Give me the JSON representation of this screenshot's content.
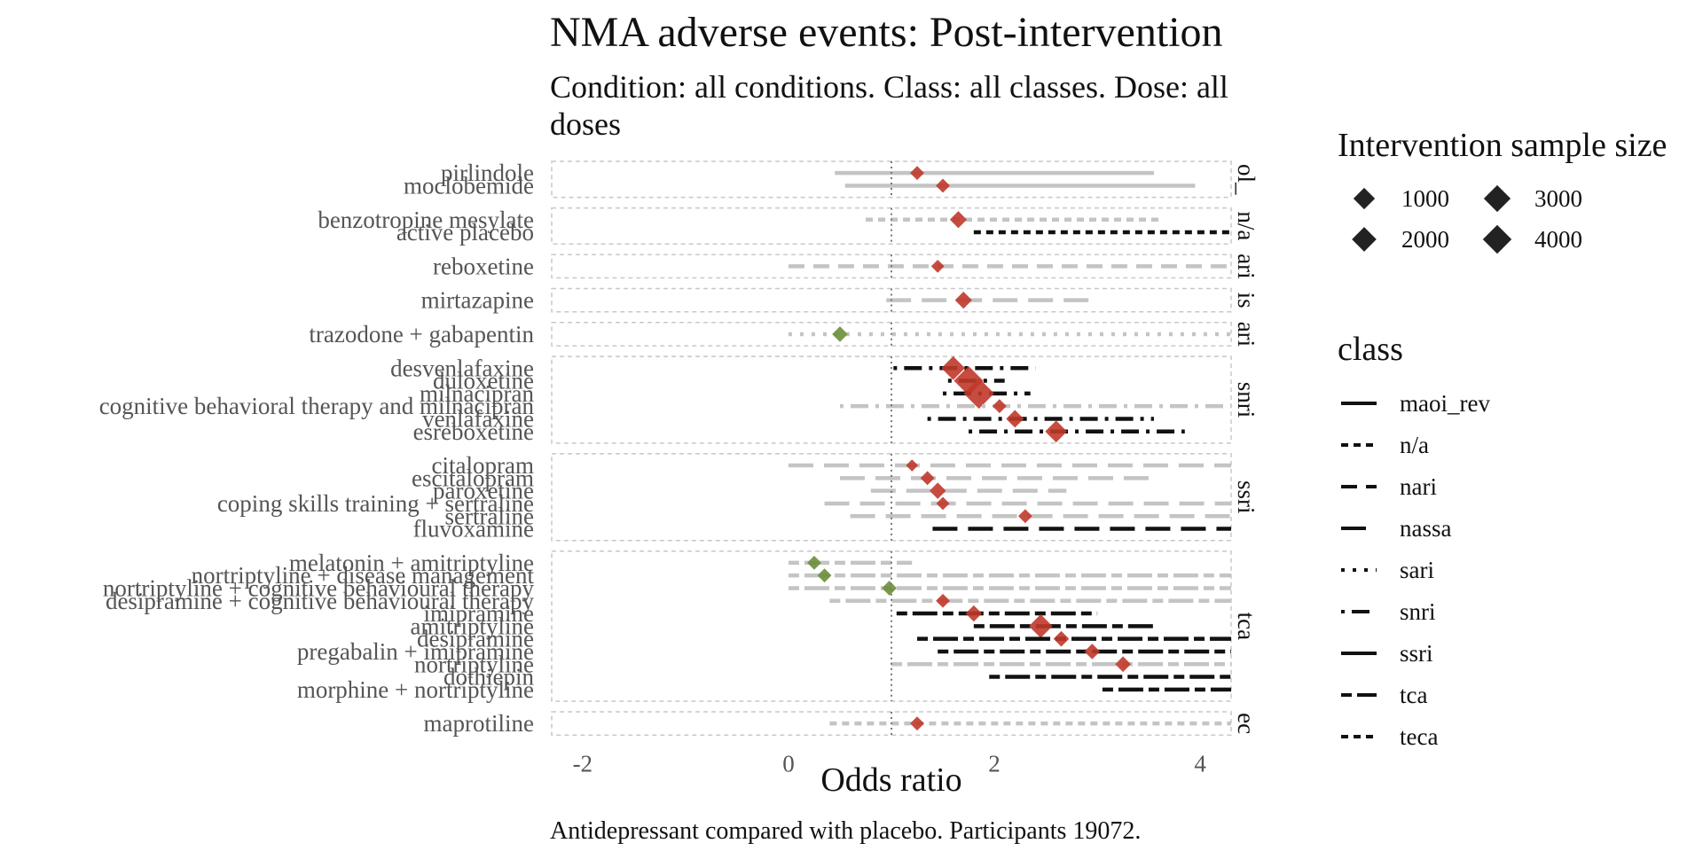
{
  "chart_data": {
    "type": "forest",
    "title": "NMA adverse events: Post-intervention",
    "subtitle_line1": "Condition: all conditions. Class: all classes. Dose: all",
    "subtitle_line2": "doses",
    "xlabel": "Odds ratio",
    "caption": "Antidepressant compared with placebo. Participants 19072.",
    "xlim": [
      -2.3,
      4.3
    ],
    "x_ticks": [
      -2,
      0,
      2,
      4
    ],
    "x_tick_labels": [
      "-2",
      "0",
      "2",
      "4"
    ],
    "reference_line": 1,
    "legend_size": {
      "title": "Intervention sample size",
      "entries": [
        {
          "label": "1000",
          "value": 1000
        },
        {
          "label": "3000",
          "value": 3000
        },
        {
          "label": "2000",
          "value": 2000
        },
        {
          "label": "4000",
          "value": 4000
        }
      ]
    },
    "legend_class": {
      "title": "class",
      "entries": [
        {
          "label": "maoi_rev",
          "dash": "solid"
        },
        {
          "label": "n/a",
          "dash": "dotted-dash"
        },
        {
          "label": "nari",
          "dash": "dashed"
        },
        {
          "label": "nassa",
          "dash": "longdash"
        },
        {
          "label": "sari",
          "dash": "dotted"
        },
        {
          "label": "snri",
          "dash": "dotdash"
        },
        {
          "label": "ssri",
          "dash": "solid"
        },
        {
          "label": "tca",
          "dash": "twodash"
        },
        {
          "label": "teca",
          "dash": "dotted-dash"
        }
      ]
    },
    "colors": {
      "point_harm": "#c0392b",
      "point_benefit": "#6b8e3a",
      "ci_sig": "#111111",
      "ci_nonsig": "#c4c4c4",
      "ref_line": "#777777"
    },
    "panels": [
      {
        "strip": "ol_",
        "rows": [
          {
            "label": "pirlindole",
            "or": 1.25,
            "lo": 0.45,
            "hi": 3.55,
            "size": 500,
            "sig": false,
            "dash": "solid"
          },
          {
            "label": "moclobemide",
            "or": 1.5,
            "lo": 0.55,
            "hi": 3.95,
            "size": 500,
            "sig": false,
            "dash": "solid"
          }
        ]
      },
      {
        "strip": "n/a",
        "rows": [
          {
            "label": "benzotropine mesylate",
            "or": 1.65,
            "lo": 0.75,
            "hi": 3.6,
            "size": 900,
            "sig": false,
            "dash": "dotted-dash"
          },
          {
            "label": "active placebo",
            "or": 1.8,
            "lo": 1.8,
            "hi": 4.3,
            "size": 0,
            "sig": true,
            "dash": "dotted-dash"
          }
        ]
      },
      {
        "strip": "ari",
        "rows": [
          {
            "label": "reboxetine",
            "or": 1.45,
            "lo": 0.0,
            "hi": 4.3,
            "size": 400,
            "sig": false,
            "dash": "dashed"
          }
        ]
      },
      {
        "strip": "is",
        "rows": [
          {
            "label": "mirtazapine",
            "or": 1.7,
            "lo": 0.95,
            "hi": 3.0,
            "size": 900,
            "sig": false,
            "dash": "longdash"
          }
        ]
      },
      {
        "strip": "ari",
        "rows": [
          {
            "label": "trazodone + gabapentin",
            "or": 0.5,
            "lo": 0.0,
            "hi": 4.3,
            "size": 700,
            "sig": false,
            "dash": "dotted",
            "benefit": true
          }
        ]
      },
      {
        "strip": "snri",
        "rows": [
          {
            "label": "desvenlafaxine",
            "or": 1.6,
            "lo": 1.02,
            "hi": 2.4,
            "size": 2200,
            "sig": true,
            "dash": "dotdash"
          },
          {
            "label": "duloxetine",
            "or": 1.75,
            "lo": 1.55,
            "hi": 2.1,
            "size": 3800,
            "sig": true,
            "dash": "dotdash"
          },
          {
            "label": "milnacipran",
            "or": 1.85,
            "lo": 1.5,
            "hi": 2.35,
            "size": 4200,
            "sig": true,
            "dash": "dotdash"
          },
          {
            "label": "cognitive behavioral therapy and milnacipran",
            "or": 2.05,
            "lo": 0.5,
            "hi": 4.3,
            "size": 500,
            "sig": false,
            "dash": "dotdash"
          },
          {
            "label": "venlafaxine",
            "or": 2.2,
            "lo": 1.35,
            "hi": 3.55,
            "size": 1000,
            "sig": true,
            "dash": "dotdash"
          },
          {
            "label": "esreboxetine",
            "or": 2.6,
            "lo": 1.75,
            "hi": 3.85,
            "size": 1800,
            "sig": true,
            "dash": "dotdash"
          }
        ]
      },
      {
        "strip": "ssri",
        "rows": [
          {
            "label": "citalopram",
            "or": 1.2,
            "lo": 0.0,
            "hi": 4.3,
            "size": 300,
            "sig": false,
            "dash": "longdash"
          },
          {
            "label": "escitalopram",
            "or": 1.35,
            "lo": 0.5,
            "hi": 3.55,
            "size": 500,
            "sig": false,
            "dash": "longdash"
          },
          {
            "label": "paroxetine",
            "or": 1.45,
            "lo": 0.8,
            "hi": 2.7,
            "size": 800,
            "sig": false,
            "dash": "longdash"
          },
          {
            "label": "coping skills training + sertraline",
            "or": 1.5,
            "lo": 0.35,
            "hi": 4.3,
            "size": 400,
            "sig": false,
            "dash": "longdash"
          },
          {
            "label": "sertraline",
            "or": 2.3,
            "lo": 0.6,
            "hi": 4.3,
            "size": 500,
            "sig": false,
            "dash": "longdash"
          },
          {
            "label": "fluvoxamine",
            "or": 2.3,
            "lo": 1.4,
            "hi": 4.3,
            "size": 0,
            "sig": true,
            "dash": "longdash"
          }
        ]
      },
      {
        "strip": "tca",
        "rows": [
          {
            "label": "melatonin + amitriptyline",
            "or": 0.25,
            "lo": 0.0,
            "hi": 1.2,
            "size": 500,
            "sig": false,
            "dash": "twodash",
            "benefit": true
          },
          {
            "label": "nortriptyline + disease management",
            "or": 0.35,
            "lo": 0.0,
            "hi": 4.3,
            "size": 500,
            "sig": false,
            "dash": "twodash",
            "benefit": true
          },
          {
            "label": "nortriptyline + cognitive behavioural therapy",
            "or": 0.98,
            "lo": 0.0,
            "hi": 4.3,
            "size": 600,
            "sig": false,
            "dash": "twodash",
            "benefit": true
          },
          {
            "label": "desipramine + cognitive behavioural therapy",
            "or": 1.5,
            "lo": 0.4,
            "hi": 4.3,
            "size": 500,
            "sig": false,
            "dash": "twodash"
          },
          {
            "label": "imipramine",
            "or": 1.8,
            "lo": 1.05,
            "hi": 3.0,
            "size": 800,
            "sig": true,
            "dash": "twodash"
          },
          {
            "label": "amitriptyline",
            "or": 2.45,
            "lo": 1.8,
            "hi": 3.55,
            "size": 2200,
            "sig": true,
            "dash": "twodash"
          },
          {
            "label": "desipramine",
            "or": 2.65,
            "lo": 1.25,
            "hi": 4.3,
            "size": 700,
            "sig": true,
            "dash": "twodash"
          },
          {
            "label": "pregabalin + imipramine",
            "or": 2.95,
            "lo": 1.45,
            "hi": 4.3,
            "size": 700,
            "sig": true,
            "dash": "twodash"
          },
          {
            "label": "nortriptyline",
            "or": 3.25,
            "lo": 1.0,
            "hi": 4.3,
            "size": 700,
            "sig": false,
            "dash": "twodash"
          },
          {
            "label": "dothiepin",
            "or": 3.25,
            "lo": 1.95,
            "hi": 4.3,
            "size": 0,
            "sig": true,
            "dash": "twodash"
          },
          {
            "label": "morphine + nortriptyline",
            "or": 3.25,
            "lo": 3.05,
            "hi": 4.3,
            "size": 0,
            "sig": true,
            "dash": "twodash"
          }
        ]
      },
      {
        "strip": "ec",
        "rows": [
          {
            "label": "maprotiline",
            "or": 1.25,
            "lo": 0.4,
            "hi": 4.3,
            "size": 500,
            "sig": false,
            "dash": "dotted-dash"
          }
        ]
      }
    ]
  }
}
